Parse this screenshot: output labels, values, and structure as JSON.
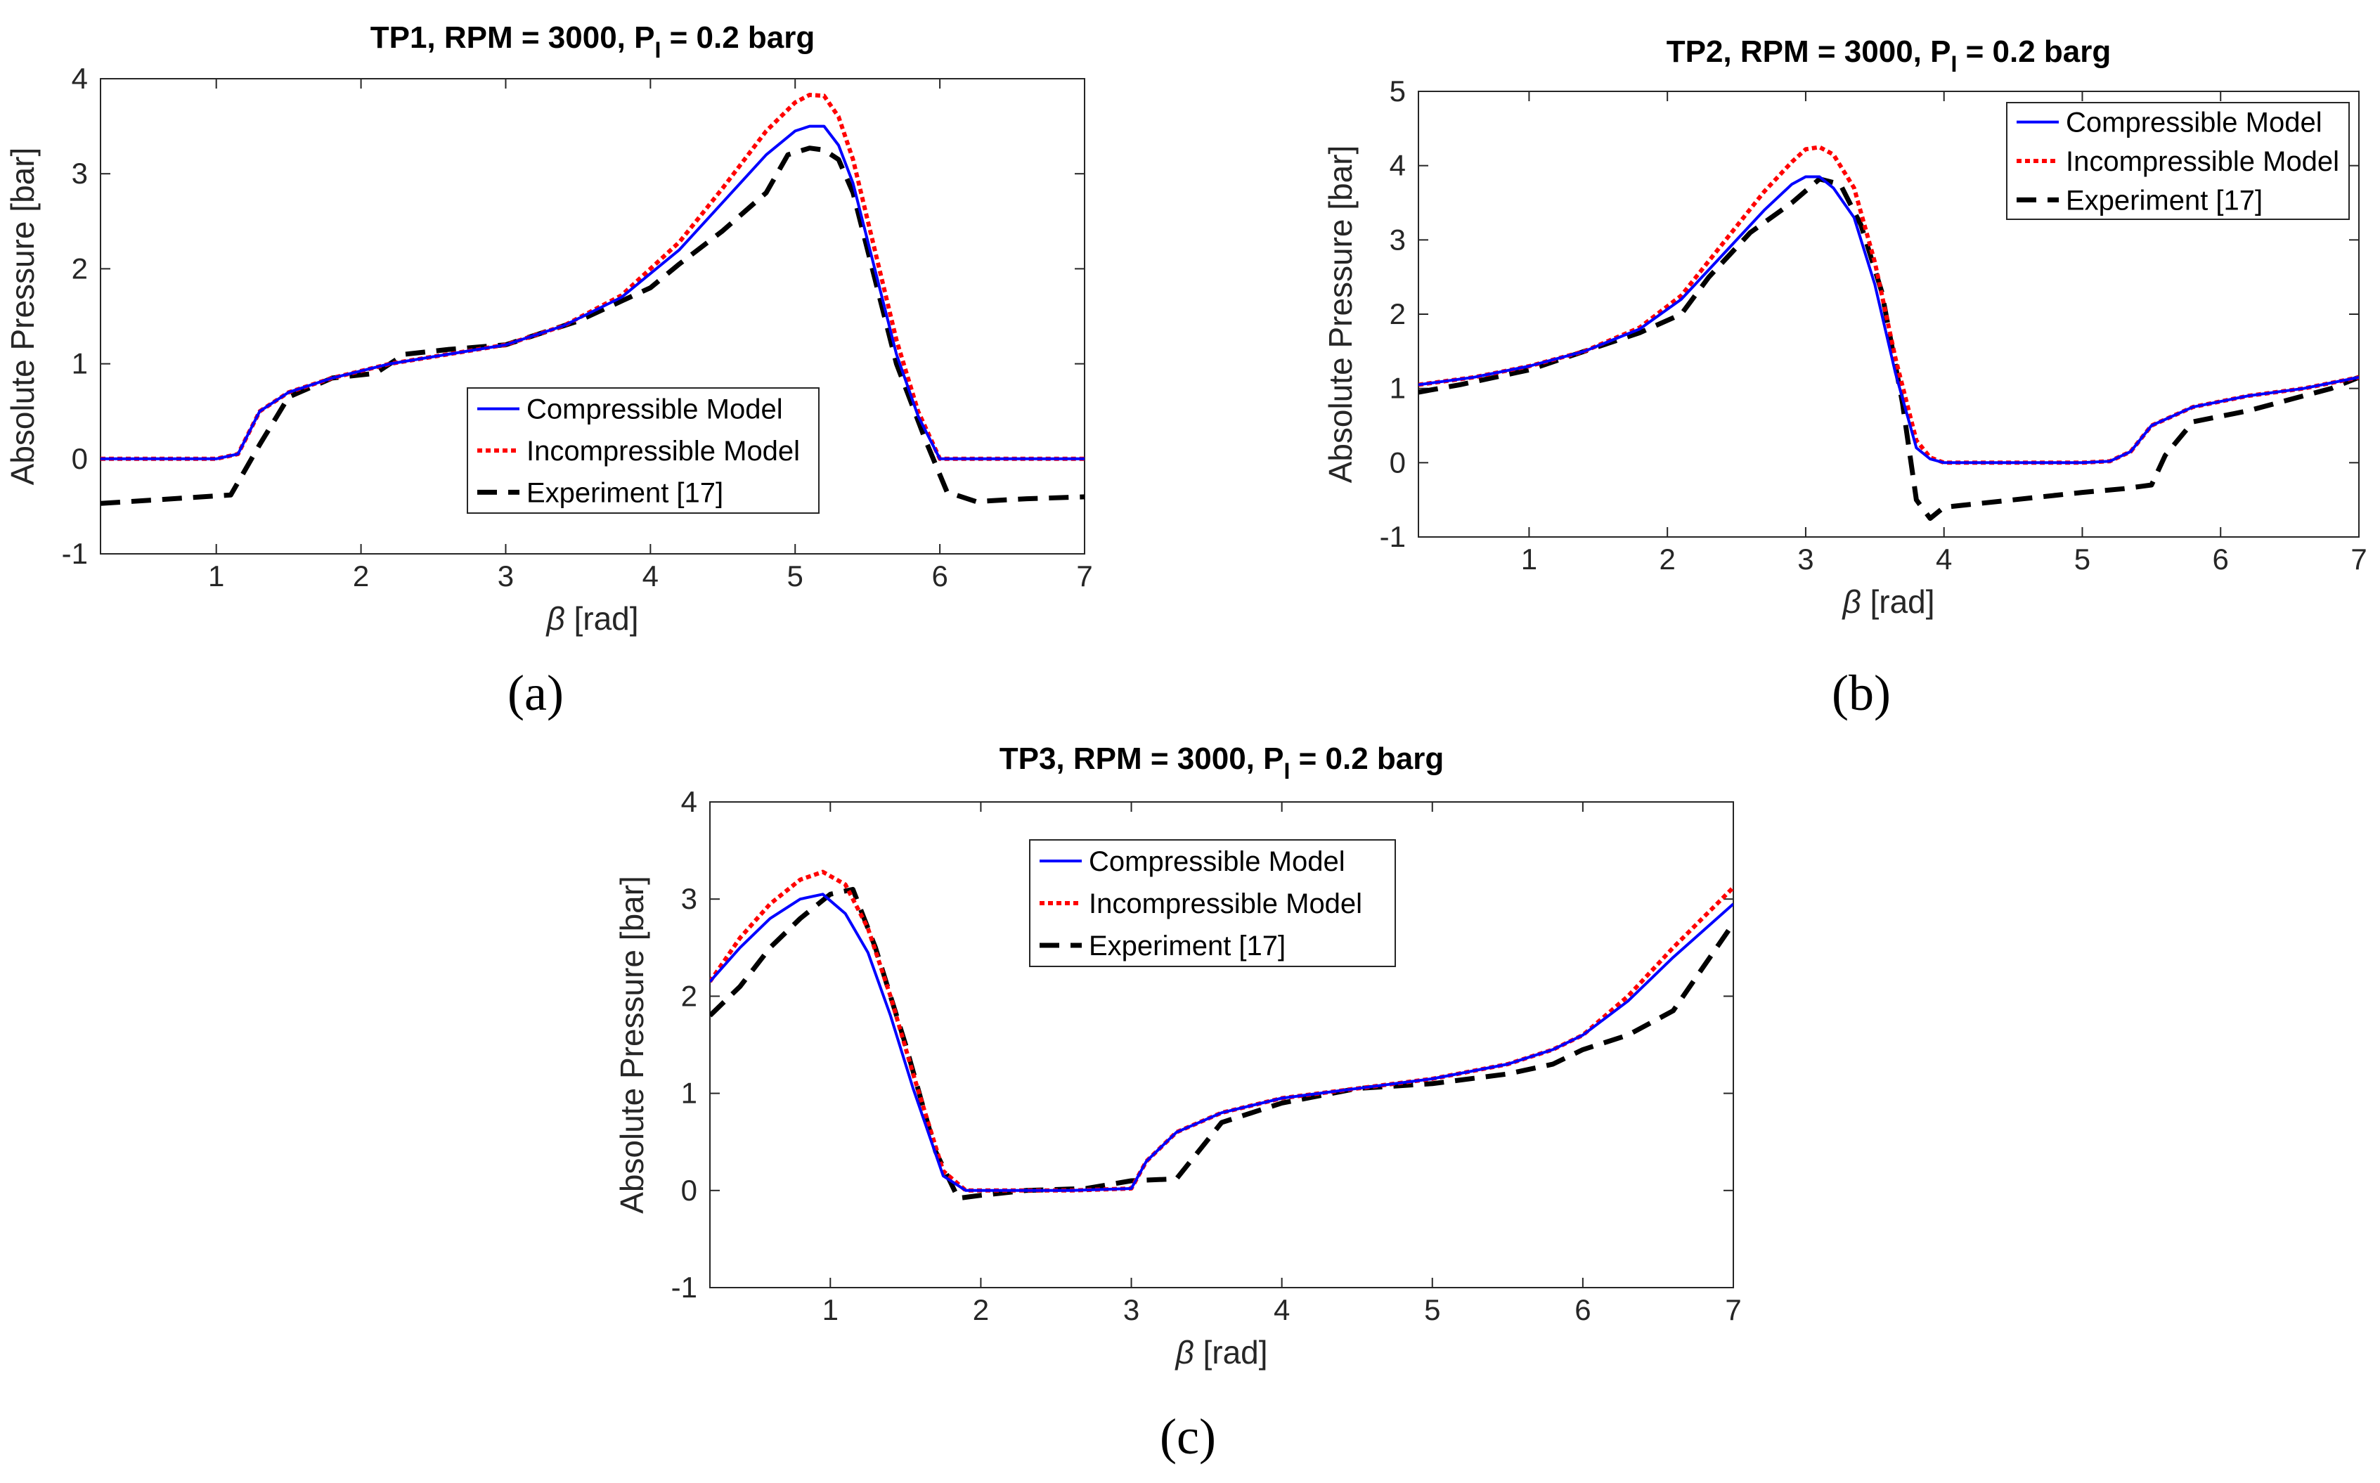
{
  "figure": {
    "panels": [
      "(a)",
      "(b)",
      "(c)"
    ]
  },
  "chart_data": [
    {
      "type": "line",
      "title": "TP1, RPM = 3000, P",
      "title_sub": "I",
      "title_tail": " = 0.2 barg",
      "xlabel_symbol": "β",
      "xlabel": "[rad]",
      "ylabel": "Absolute Pressure [bar]",
      "xlim": [
        0.2,
        7
      ],
      "ylim": [
        -1,
        4
      ],
      "xticks": [
        1,
        2,
        3,
        4,
        5,
        6,
        7
      ],
      "yticks": [
        -1,
        0,
        1,
        2,
        3,
        4
      ],
      "legend_position": "lower-center",
      "colors": {
        "compressible": "#0000ff",
        "incompressible": "#ff0000",
        "experiment": "#000000"
      },
      "series": [
        {
          "name": "Compressible Model",
          "style": "solid",
          "x": [
            0.2,
            1.0,
            1.15,
            1.3,
            1.5,
            1.8,
            2.2,
            2.6,
            3.0,
            3.4,
            3.8,
            4.2,
            4.5,
            4.8,
            5.0,
            5.1,
            5.2,
            5.3,
            5.4,
            5.55,
            5.7,
            5.85,
            6.0,
            6.3,
            7.0
          ],
          "y": [
            0,
            0,
            0.05,
            0.5,
            0.7,
            0.85,
            1.0,
            1.1,
            1.2,
            1.4,
            1.7,
            2.2,
            2.7,
            3.2,
            3.45,
            3.5,
            3.5,
            3.3,
            2.9,
            2.0,
            1.1,
            0.45,
            0,
            0,
            0
          ]
        },
        {
          "name": "Incompressible Model",
          "style": "dotted",
          "x": [
            0.2,
            1.0,
            1.15,
            1.3,
            1.5,
            1.8,
            2.2,
            2.6,
            3.0,
            3.4,
            3.8,
            4.2,
            4.5,
            4.8,
            5.0,
            5.1,
            5.2,
            5.3,
            5.4,
            5.55,
            5.7,
            5.85,
            6.0,
            6.3,
            7.0
          ],
          "y": [
            0,
            0,
            0.05,
            0.5,
            0.7,
            0.85,
            1.0,
            1.1,
            1.2,
            1.4,
            1.72,
            2.28,
            2.85,
            3.45,
            3.75,
            3.83,
            3.82,
            3.6,
            3.15,
            2.2,
            1.25,
            0.5,
            0,
            0,
            0
          ]
        },
        {
          "name": "Experiment [17]",
          "style": "dashed",
          "x": [
            0.2,
            0.7,
            1.1,
            1.3,
            1.5,
            1.8,
            2.1,
            2.3,
            2.6,
            3.0,
            3.5,
            4.0,
            4.2,
            4.5,
            4.8,
            4.95,
            5.1,
            5.2,
            5.3,
            5.4,
            5.55,
            5.7,
            5.9,
            6.05,
            6.25,
            6.6,
            7.0
          ],
          "y": [
            -0.47,
            -0.42,
            -0.38,
            0.15,
            0.65,
            0.85,
            0.9,
            1.1,
            1.15,
            1.2,
            1.45,
            1.8,
            2.05,
            2.4,
            2.8,
            3.2,
            3.27,
            3.25,
            3.15,
            2.8,
            1.9,
            1.0,
            0.2,
            -0.35,
            -0.45,
            -0.42,
            -0.4
          ]
        }
      ]
    },
    {
      "type": "line",
      "title": "TP2, RPM = 3000, P",
      "title_sub": "I",
      "title_tail": " = 0.2 barg",
      "xlabel_symbol": "β",
      "xlabel": "[rad]",
      "ylabel": "Absolute Pressure [bar]",
      "xlim": [
        0.2,
        7
      ],
      "ylim": [
        -1,
        5
      ],
      "xticks": [
        1,
        2,
        3,
        4,
        5,
        6,
        7
      ],
      "yticks": [
        -1,
        0,
        1,
        2,
        3,
        4,
        5
      ],
      "legend_position": "top-right",
      "colors": {
        "compressible": "#0000ff",
        "incompressible": "#ff0000",
        "experiment": "#000000"
      },
      "series": [
        {
          "name": "Compressible Model",
          "style": "solid",
          "x": [
            0.2,
            0.6,
            1.0,
            1.4,
            1.8,
            2.1,
            2.4,
            2.7,
            2.9,
            3.0,
            3.1,
            3.2,
            3.35,
            3.5,
            3.65,
            3.8,
            3.9,
            4.0,
            4.5,
            5.0,
            5.2,
            5.35,
            5.5,
            5.8,
            6.2,
            6.6,
            7.0
          ],
          "y": [
            1.05,
            1.15,
            1.3,
            1.5,
            1.8,
            2.2,
            2.8,
            3.4,
            3.75,
            3.85,
            3.85,
            3.7,
            3.3,
            2.4,
            1.2,
            0.2,
            0.05,
            0,
            0,
            0,
            0.02,
            0.15,
            0.5,
            0.75,
            0.9,
            1.0,
            1.15
          ]
        },
        {
          "name": "Incompressible Model",
          "style": "dotted",
          "x": [
            0.2,
            0.6,
            1.0,
            1.4,
            1.8,
            2.1,
            2.4,
            2.7,
            2.9,
            3.0,
            3.1,
            3.2,
            3.35,
            3.5,
            3.65,
            3.8,
            3.9,
            4.0,
            4.5,
            5.0,
            5.2,
            5.35,
            5.5,
            5.8,
            6.2,
            6.6,
            7.0
          ],
          "y": [
            1.05,
            1.15,
            1.3,
            1.5,
            1.82,
            2.25,
            2.95,
            3.65,
            4.05,
            4.22,
            4.25,
            4.15,
            3.7,
            2.7,
            1.4,
            0.3,
            0.07,
            0,
            0,
            0,
            0.02,
            0.15,
            0.5,
            0.75,
            0.9,
            1.0,
            1.15
          ]
        },
        {
          "name": "Experiment [17]",
          "style": "dashed",
          "x": [
            0.2,
            0.5,
            1.0,
            1.4,
            1.8,
            2.1,
            2.3,
            2.6,
            2.9,
            3.1,
            3.25,
            3.4,
            3.55,
            3.7,
            3.8,
            3.9,
            4.0,
            4.5,
            5.0,
            5.3,
            5.5,
            5.6,
            5.8,
            6.2,
            6.6,
            6.8,
            7.0
          ],
          "y": [
            0.95,
            1.05,
            1.25,
            1.5,
            1.75,
            2.0,
            2.5,
            3.1,
            3.5,
            3.82,
            3.75,
            3.2,
            2.3,
            0.8,
            -0.5,
            -0.75,
            -0.6,
            -0.5,
            -0.4,
            -0.35,
            -0.3,
            0.1,
            0.55,
            0.7,
            0.9,
            1.0,
            1.15
          ]
        }
      ]
    },
    {
      "type": "line",
      "title": "TP3, RPM = 3000, P",
      "title_sub": "I",
      "title_tail": " = 0.2 barg",
      "xlabel_symbol": "β",
      "xlabel": "[rad]",
      "ylabel": "Absolute Pressure [bar]",
      "xlim": [
        0.2,
        7
      ],
      "ylim": [
        -1,
        4
      ],
      "xticks": [
        1,
        2,
        3,
        4,
        5,
        6,
        7
      ],
      "yticks": [
        -1,
        0,
        1,
        2,
        3,
        4
      ],
      "legend_position": "top-center",
      "colors": {
        "compressible": "#0000ff",
        "incompressible": "#ff0000",
        "experiment": "#000000"
      },
      "series": [
        {
          "name": "Compressible Model",
          "style": "solid",
          "x": [
            0.2,
            0.4,
            0.6,
            0.8,
            0.95,
            1.1,
            1.25,
            1.4,
            1.55,
            1.75,
            1.9,
            2.2,
            2.6,
            3.0,
            3.1,
            3.3,
            3.6,
            4.0,
            4.5,
            5.0,
            5.5,
            5.8,
            6.0,
            6.3,
            6.6,
            7.0
          ],
          "y": [
            2.15,
            2.5,
            2.8,
            3.0,
            3.05,
            2.85,
            2.45,
            1.8,
            1.05,
            0.15,
            0,
            0,
            0,
            0.02,
            0.3,
            0.6,
            0.8,
            0.95,
            1.05,
            1.15,
            1.3,
            1.45,
            1.6,
            1.95,
            2.4,
            2.95
          ]
        },
        {
          "name": "Incompressible Model",
          "style": "dotted",
          "x": [
            0.2,
            0.4,
            0.6,
            0.8,
            0.95,
            1.1,
            1.25,
            1.4,
            1.55,
            1.75,
            1.9,
            2.2,
            2.6,
            3.0,
            3.1,
            3.3,
            3.6,
            4.0,
            4.5,
            5.0,
            5.5,
            5.8,
            6.0,
            6.3,
            6.6,
            7.0
          ],
          "y": [
            2.15,
            2.6,
            2.95,
            3.2,
            3.28,
            3.15,
            2.7,
            2.0,
            1.2,
            0.2,
            0,
            0,
            0,
            0.02,
            0.3,
            0.6,
            0.8,
            0.95,
            1.05,
            1.15,
            1.3,
            1.45,
            1.6,
            2.0,
            2.5,
            3.12
          ]
        },
        {
          "name": "Experiment [17]",
          "style": "dashed",
          "x": [
            0.2,
            0.4,
            0.6,
            0.8,
            1.0,
            1.15,
            1.3,
            1.5,
            1.7,
            1.85,
            2.0,
            2.3,
            2.7,
            3.0,
            3.3,
            3.6,
            4.0,
            4.5,
            5.0,
            5.5,
            5.8,
            6.0,
            6.3,
            6.6,
            6.8,
            7.0
          ],
          "y": [
            1.8,
            2.1,
            2.5,
            2.8,
            3.05,
            3.1,
            2.5,
            1.5,
            0.4,
            -0.08,
            -0.05,
            0,
            0.02,
            0.1,
            0.12,
            0.7,
            0.9,
            1.05,
            1.1,
            1.2,
            1.3,
            1.45,
            1.6,
            1.85,
            2.3,
            2.75
          ]
        }
      ]
    }
  ]
}
